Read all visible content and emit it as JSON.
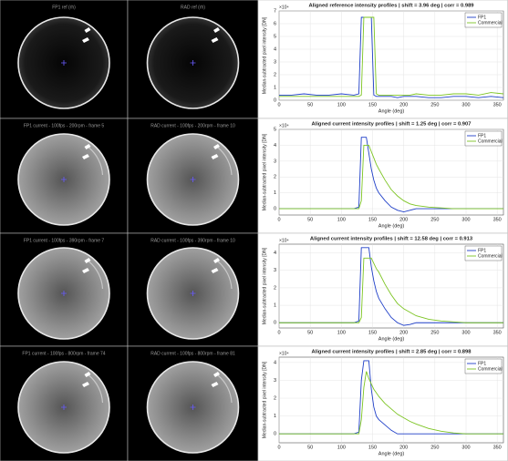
{
  "images": [
    [
      "FP1 ref (rh)",
      "RAD ref (rh)"
    ],
    [
      "FP1 current - 100fps - 200rpm - frame 5",
      "RAD current - 100fps - 200rpm - frame 10"
    ],
    [
      "FP1 current - 100fps - 390rpm - frame 7",
      "RAD current - 100fps - 390rpm - frame 10"
    ],
    [
      "FP1 current - 100fps - 800rpm - frame 74",
      "RAD current - 100fps - 800rpm - frame 81"
    ]
  ],
  "chart_data": [
    {
      "type": "line",
      "title": "Aligned reference intensity profiles | shift = 3.96 deg | corr = 0.989",
      "x_label": "Angle (deg)",
      "y_label": "Median-subtracted pixel intensity [DN]",
      "y_exponent": "×10⁴",
      "x": [
        0,
        20,
        40,
        60,
        80,
        100,
        120,
        128,
        132,
        136,
        140,
        144,
        148,
        152,
        156,
        160,
        170,
        180,
        190,
        200,
        210,
        220,
        240,
        260,
        280,
        300,
        320,
        340,
        360
      ],
      "series": [
        {
          "name": "FP1",
          "color": "#1f3fc8",
          "values": [
            0.4,
            0.4,
            0.5,
            0.4,
            0.4,
            0.5,
            0.4,
            0.5,
            6.5,
            6.5,
            6.5,
            6.5,
            6.5,
            0.4,
            0.3,
            0.3,
            0.3,
            0.3,
            0.2,
            0.3,
            0.3,
            0.3,
            0.2,
            0.2,
            0.3,
            0.3,
            0.2,
            0.3,
            0.2
          ]
        },
        {
          "name": "Commercial",
          "color": "#7cc422",
          "values": [
            0.3,
            0.3,
            0.3,
            0.3,
            0.3,
            0.3,
            0.3,
            0.3,
            0.4,
            6.5,
            6.5,
            6.5,
            6.5,
            6.5,
            0.5,
            0.4,
            0.4,
            0.4,
            0.4,
            0.4,
            0.4,
            0.5,
            0.4,
            0.4,
            0.5,
            0.5,
            0.4,
            0.6,
            0.5
          ]
        }
      ],
      "xlim": [
        0,
        360
      ],
      "xticks": [
        0,
        50,
        100,
        150,
        200,
        250,
        300,
        350
      ],
      "ylim": [
        0,
        7
      ],
      "yticks": [
        0,
        1,
        2,
        3,
        4,
        5,
        6,
        7
      ],
      "grid": true,
      "legend": "upper right"
    },
    {
      "type": "line",
      "title": "Aligned current intensity profiles | shift = 1.25 deg | corr = 0.907",
      "x_label": "Angle (deg)",
      "y_label": "Median-subtracted pixel intensity [DN]",
      "y_exponent": "×10⁴",
      "x": [
        0,
        20,
        40,
        60,
        80,
        100,
        120,
        128,
        132,
        136,
        140,
        144,
        148,
        152,
        156,
        160,
        170,
        180,
        190,
        200,
        210,
        220,
        240,
        260,
        280,
        300,
        320,
        340,
        360
      ],
      "series": [
        {
          "name": "FP1",
          "color": "#1f3fc8",
          "values": [
            0,
            0,
            0,
            0,
            0,
            0,
            0,
            0.1,
            4.5,
            4.5,
            4.5,
            3.5,
            2.5,
            1.8,
            1.3,
            1.0,
            0.5,
            0.1,
            -0.1,
            -0.2,
            -0.1,
            0,
            0,
            0,
            0,
            0,
            0,
            0,
            0
          ]
        },
        {
          "name": "Commercial",
          "color": "#7cc422",
          "values": [
            0,
            0,
            0,
            0,
            0,
            0,
            0,
            0,
            0.5,
            4.0,
            4.0,
            4.0,
            3.6,
            3.2,
            2.8,
            2.5,
            1.8,
            1.2,
            0.8,
            0.5,
            0.3,
            0.2,
            0.1,
            0.05,
            0,
            0,
            0,
            0,
            0
          ]
        }
      ],
      "xlim": [
        0,
        360
      ],
      "xticks": [
        0,
        50,
        100,
        150,
        200,
        250,
        300,
        350
      ],
      "ylim": [
        -0.4,
        5
      ],
      "yticks": [
        0,
        1,
        2,
        3,
        4,
        5
      ],
      "grid": true,
      "legend": "upper right"
    },
    {
      "type": "line",
      "title": "Aligned current intensity profiles | shift = 12.58 deg | corr = 0.913",
      "x_label": "Angle (deg)",
      "y_label": "Median-subtracted pixel intensity [DN]",
      "y_exponent": "×10⁴",
      "x": [
        0,
        20,
        40,
        60,
        80,
        100,
        120,
        128,
        132,
        136,
        140,
        144,
        148,
        152,
        156,
        160,
        170,
        180,
        190,
        200,
        210,
        220,
        240,
        260,
        280,
        300,
        320,
        340,
        360
      ],
      "series": [
        {
          "name": "FP1",
          "color": "#1f3fc8",
          "values": [
            0,
            0,
            0,
            0,
            0,
            0,
            0,
            0.1,
            4.3,
            4.3,
            4.3,
            4.3,
            3.2,
            2.4,
            1.8,
            1.4,
            0.8,
            0.3,
            0,
            -0.15,
            -0.1,
            0,
            0,
            0,
            0,
            0,
            0,
            0,
            0
          ]
        },
        {
          "name": "Commercial",
          "color": "#7cc422",
          "values": [
            0,
            0,
            0,
            0,
            0,
            0,
            0,
            0,
            0.3,
            3.7,
            3.7,
            3.7,
            3.7,
            3.4,
            3.1,
            2.9,
            2.2,
            1.6,
            1.1,
            0.8,
            0.6,
            0.4,
            0.2,
            0.1,
            0.05,
            0,
            0,
            0,
            0
          ]
        }
      ],
      "xlim": [
        0,
        360
      ],
      "xticks": [
        0,
        50,
        100,
        150,
        200,
        250,
        300,
        350
      ],
      "ylim": [
        -0.3,
        4.5
      ],
      "yticks": [
        0,
        1,
        2,
        3,
        4
      ],
      "grid": true,
      "legend": "upper right"
    },
    {
      "type": "line",
      "title": "Aligned current intensity profiles | shift = 2.85 deg | corr = 0.898",
      "x_label": "Angle (deg)",
      "y_label": "Median-subtracted pixel intensity [DN]",
      "y_exponent": "×10⁴",
      "x": [
        0,
        20,
        40,
        60,
        80,
        100,
        120,
        128,
        132,
        136,
        140,
        144,
        148,
        152,
        156,
        160,
        170,
        180,
        190,
        200,
        210,
        220,
        240,
        260,
        280,
        300,
        320,
        340,
        360
      ],
      "series": [
        {
          "name": "FP1",
          "color": "#1f3fc8",
          "values": [
            0,
            0,
            0,
            0,
            0,
            0,
            0,
            0.1,
            3.0,
            4.1,
            4.1,
            4.1,
            2.5,
            1.5,
            1.0,
            0.8,
            0.5,
            0.2,
            0,
            0,
            0,
            0,
            0,
            0,
            0,
            0,
            0,
            0,
            0
          ]
        },
        {
          "name": "Commercial",
          "color": "#7cc422",
          "values": [
            0,
            0,
            0,
            0,
            0,
            0,
            0,
            0,
            0.8,
            2.6,
            3.5,
            3.1,
            2.8,
            2.5,
            2.3,
            2.1,
            1.7,
            1.4,
            1.1,
            0.9,
            0.7,
            0.55,
            0.3,
            0.15,
            0.05,
            0,
            0,
            0,
            0
          ]
        }
      ],
      "xlim": [
        0,
        360
      ],
      "xticks": [
        0,
        50,
        100,
        150,
        200,
        250,
        300,
        350
      ],
      "ylim": [
        -0.5,
        4.3
      ],
      "yticks": [
        0,
        1,
        2,
        3,
        4
      ],
      "grid": true,
      "legend": "upper right"
    }
  ]
}
